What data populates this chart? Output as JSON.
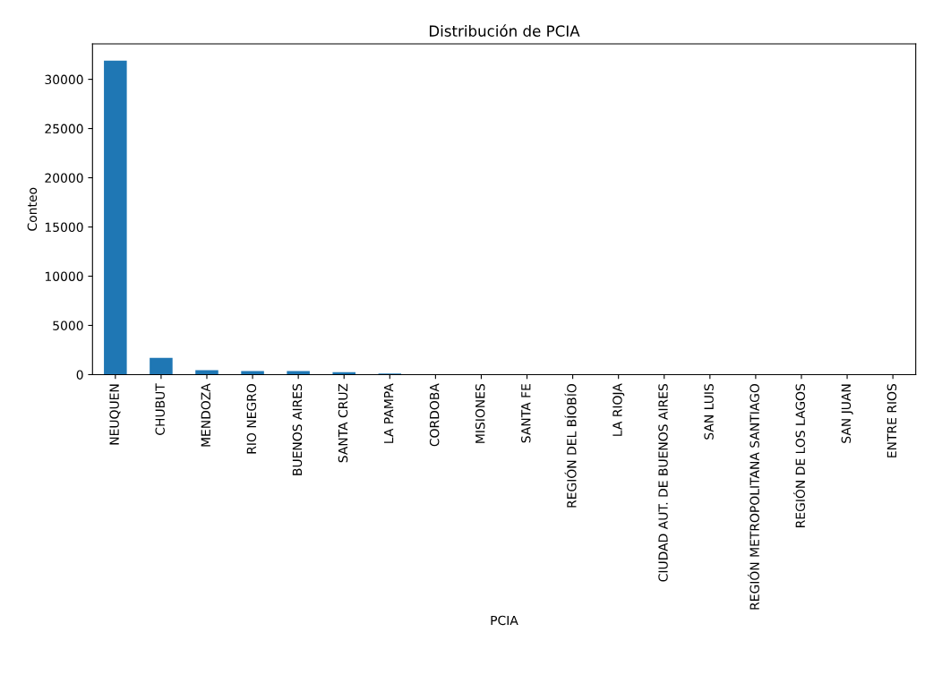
{
  "chart_data": {
    "type": "bar",
    "title": "Distribución de PCIA",
    "xlabel": "PCIA",
    "ylabel": "Conteo",
    "categories": [
      "NEUQUEN",
      "CHUBUT",
      "MENDOZA",
      "RIO NEGRO",
      "BUENOS AIRES",
      "SANTA CRUZ",
      "LA PAMPA",
      "CORDOBA",
      "MISIONES",
      "SANTA FE",
      "REGIÓN DEL BÍOBÍO",
      "LA RIOJA",
      "CIUDAD AUT. DE BUENOS AIRES",
      "SAN LUIS",
      "REGIÓN METROPOLITANA SANTIAGO",
      "REGIÓN DE LOS LAGOS",
      "SAN JUAN",
      "ENTRE RIOS"
    ],
    "values": [
      31900,
      1700,
      450,
      350,
      350,
      250,
      100,
      null,
      null,
      null,
      null,
      null,
      null,
      null,
      null,
      null,
      null,
      null
    ],
    "color": "#1f77b4",
    "ylim": [
      0,
      33600
    ],
    "yticks": [
      0,
      5000,
      10000,
      15000,
      20000,
      25000,
      30000
    ],
    "grid": false,
    "legend": false
  }
}
